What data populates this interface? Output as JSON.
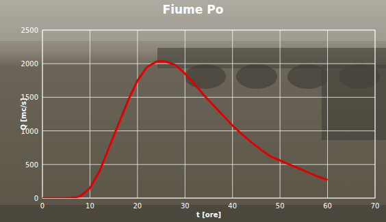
{
  "chart_data": {
    "type": "line",
    "title": "Fiume Po",
    "x_label": "t [ore]",
    "y_label": "Q [mc/s]",
    "x": [
      0,
      5,
      7,
      8,
      10,
      12,
      14,
      16,
      18,
      20,
      22,
      24,
      25,
      26,
      28,
      30,
      32,
      34,
      36,
      38,
      40,
      42,
      44,
      46,
      48,
      50,
      52,
      54,
      56,
      58,
      60
    ],
    "values": [
      0,
      0,
      10,
      30,
      150,
      400,
      750,
      1100,
      1450,
      1750,
      1950,
      2030,
      2040,
      2030,
      1980,
      1850,
      1700,
      1530,
      1380,
      1230,
      1080,
      950,
      830,
      720,
      620,
      560,
      500,
      440,
      380,
      320,
      270
    ],
    "color": "#e00000",
    "xlim": [
      0,
      70
    ],
    "xticks": [
      0,
      10,
      20,
      30,
      40,
      50,
      60,
      70
    ],
    "ylim": [
      0,
      2500
    ],
    "yticks": [
      0,
      500,
      1000,
      1500,
      2000,
      2500
    ],
    "grid": true
  }
}
